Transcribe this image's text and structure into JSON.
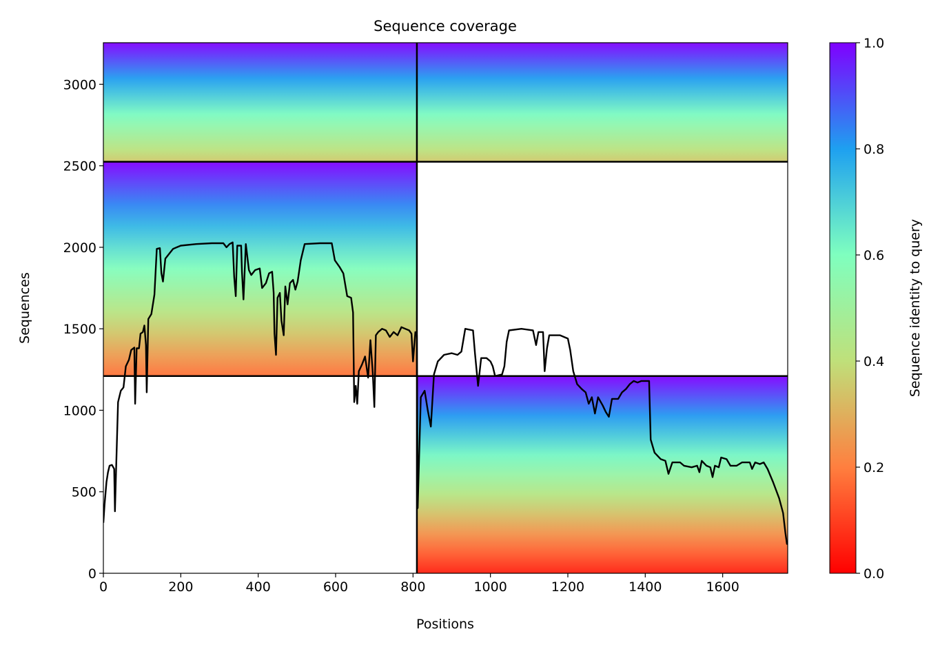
{
  "chart_data": {
    "type": "heatmap",
    "title": "Sequence coverage",
    "xlabel": "Positions",
    "ylabel": "Sequences",
    "xlim": [
      0,
      1768
    ],
    "ylim": [
      0,
      3255
    ],
    "x_ticks": [
      0,
      200,
      400,
      600,
      800,
      1000,
      1200,
      1400,
      1600
    ],
    "y_ticks": [
      0,
      500,
      1000,
      1500,
      2000,
      2500,
      3000
    ],
    "colorbar": {
      "label": "Sequence identity to query",
      "range": [
        0.0,
        1.0
      ],
      "ticks": [
        "0.0",
        "0.2",
        "0.4",
        "0.6",
        "0.8",
        "1.0"
      ],
      "colormap": "rainbow_r",
      "stops": [
        "#ff0000",
        "#ff7f3f",
        "#bfe07a",
        "#7fffbf",
        "#1ea0f0",
        "#7f00ff"
      ]
    },
    "chain_boundaries": {
      "x": [
        810
      ],
      "y": [
        1210,
        2525
      ]
    },
    "blocks": [
      {
        "name": "chain-A-block",
        "x": [
          0,
          810
        ],
        "y": [
          1210,
          2525
        ],
        "identity_top": 1.0,
        "identity_bottom": 0.18
      },
      {
        "name": "chain-AB-block",
        "x": [
          0,
          1768
        ],
        "y": [
          2525,
          3255
        ],
        "identity_top": 1.0,
        "identity_bottom": 0.35
      },
      {
        "name": "chain-B-block",
        "x": [
          810,
          1768
        ],
        "y": [
          0,
          1210
        ],
        "identity_top": 1.0,
        "identity_bottom": 0.05
      }
    ],
    "coverage_line": {
      "name": "coverage",
      "color": "#000000",
      "points": [
        [
          0,
          310
        ],
        [
          3,
          420
        ],
        [
          8,
          560
        ],
        [
          12,
          620
        ],
        [
          16,
          660
        ],
        [
          22,
          665
        ],
        [
          28,
          640
        ],
        [
          30,
          380
        ],
        [
          33,
          640
        ],
        [
          38,
          1050
        ],
        [
          45,
          1120
        ],
        [
          52,
          1140
        ],
        [
          58,
          1270
        ],
        [
          66,
          1310
        ],
        [
          72,
          1370
        ],
        [
          80,
          1385
        ],
        [
          82,
          1040
        ],
        [
          86,
          1380
        ],
        [
          92,
          1380
        ],
        [
          96,
          1470
        ],
        [
          102,
          1480
        ],
        [
          106,
          1520
        ],
        [
          110,
          1400
        ],
        [
          112,
          1110
        ],
        [
          116,
          1560
        ],
        [
          124,
          1590
        ],
        [
          132,
          1710
        ],
        [
          138,
          1990
        ],
        [
          146,
          1995
        ],
        [
          150,
          1840
        ],
        [
          154,
          1790
        ],
        [
          160,
          1930
        ],
        [
          170,
          1960
        ],
        [
          180,
          1990
        ],
        [
          200,
          2010
        ],
        [
          240,
          2020
        ],
        [
          280,
          2025
        ],
        [
          310,
          2025
        ],
        [
          318,
          2000
        ],
        [
          326,
          2020
        ],
        [
          334,
          2030
        ],
        [
          338,
          1820
        ],
        [
          342,
          1700
        ],
        [
          346,
          2010
        ],
        [
          356,
          2010
        ],
        [
          358,
          1850
        ],
        [
          362,
          1680
        ],
        [
          368,
          2020
        ],
        [
          376,
          1860
        ],
        [
          382,
          1830
        ],
        [
          392,
          1860
        ],
        [
          404,
          1870
        ],
        [
          410,
          1750
        ],
        [
          420,
          1780
        ],
        [
          428,
          1840
        ],
        [
          436,
          1850
        ],
        [
          440,
          1720
        ],
        [
          442,
          1470
        ],
        [
          446,
          1340
        ],
        [
          450,
          1690
        ],
        [
          456,
          1720
        ],
        [
          460,
          1550
        ],
        [
          466,
          1460
        ],
        [
          470,
          1760
        ],
        [
          476,
          1650
        ],
        [
          482,
          1780
        ],
        [
          490,
          1800
        ],
        [
          496,
          1740
        ],
        [
          502,
          1790
        ],
        [
          510,
          1920
        ],
        [
          520,
          2020
        ],
        [
          560,
          2025
        ],
        [
          590,
          2025
        ],
        [
          598,
          1920
        ],
        [
          610,
          1880
        ],
        [
          620,
          1840
        ],
        [
          630,
          1700
        ],
        [
          640,
          1690
        ],
        [
          645,
          1600
        ],
        [
          648,
          1050
        ],
        [
          652,
          1150
        ],
        [
          656,
          1040
        ],
        [
          660,
          1240
        ],
        [
          668,
          1280
        ],
        [
          676,
          1330
        ],
        [
          684,
          1200
        ],
        [
          690,
          1430
        ],
        [
          696,
          1230
        ],
        [
          700,
          1020
        ],
        [
          704,
          1460
        ],
        [
          710,
          1480
        ],
        [
          720,
          1500
        ],
        [
          730,
          1490
        ],
        [
          740,
          1450
        ],
        [
          750,
          1480
        ],
        [
          760,
          1460
        ],
        [
          770,
          1510
        ],
        [
          780,
          1500
        ],
        [
          790,
          1490
        ],
        [
          796,
          1470
        ],
        [
          800,
          1300
        ],
        [
          806,
          1480
        ],
        [
          810,
          1460
        ],
        [
          812,
          400
        ],
        [
          820,
          1080
        ],
        [
          830,
          1120
        ],
        [
          838,
          1000
        ],
        [
          846,
          900
        ],
        [
          854,
          1220
        ],
        [
          864,
          1300
        ],
        [
          880,
          1340
        ],
        [
          900,
          1350
        ],
        [
          915,
          1340
        ],
        [
          925,
          1360
        ],
        [
          935,
          1500
        ],
        [
          955,
          1490
        ],
        [
          960,
          1350
        ],
        [
          968,
          1150
        ],
        [
          976,
          1320
        ],
        [
          990,
          1320
        ],
        [
          1000,
          1300
        ],
        [
          1006,
          1270
        ],
        [
          1012,
          1210
        ],
        [
          1030,
          1220
        ],
        [
          1036,
          1270
        ],
        [
          1042,
          1420
        ],
        [
          1048,
          1490
        ],
        [
          1080,
          1500
        ],
        [
          1110,
          1490
        ],
        [
          1118,
          1400
        ],
        [
          1124,
          1480
        ],
        [
          1136,
          1480
        ],
        [
          1140,
          1240
        ],
        [
          1146,
          1380
        ],
        [
          1152,
          1460
        ],
        [
          1180,
          1460
        ],
        [
          1200,
          1440
        ],
        [
          1206,
          1370
        ],
        [
          1214,
          1240
        ],
        [
          1224,
          1160
        ],
        [
          1236,
          1130
        ],
        [
          1246,
          1110
        ],
        [
          1254,
          1040
        ],
        [
          1262,
          1080
        ],
        [
          1270,
          980
        ],
        [
          1278,
          1080
        ],
        [
          1290,
          1030
        ],
        [
          1298,
          990
        ],
        [
          1306,
          960
        ],
        [
          1314,
          1070
        ],
        [
          1330,
          1070
        ],
        [
          1340,
          1110
        ],
        [
          1350,
          1130
        ],
        [
          1360,
          1160
        ],
        [
          1370,
          1180
        ],
        [
          1380,
          1170
        ],
        [
          1390,
          1180
        ],
        [
          1400,
          1180
        ],
        [
          1410,
          1180
        ],
        [
          1414,
          820
        ],
        [
          1424,
          740
        ],
        [
          1440,
          700
        ],
        [
          1452,
          690
        ],
        [
          1460,
          610
        ],
        [
          1470,
          680
        ],
        [
          1490,
          680
        ],
        [
          1500,
          660
        ],
        [
          1520,
          650
        ],
        [
          1534,
          660
        ],
        [
          1540,
          620
        ],
        [
          1546,
          690
        ],
        [
          1558,
          660
        ],
        [
          1568,
          650
        ],
        [
          1574,
          590
        ],
        [
          1580,
          660
        ],
        [
          1590,
          650
        ],
        [
          1596,
          710
        ],
        [
          1610,
          700
        ],
        [
          1620,
          660
        ],
        [
          1636,
          660
        ],
        [
          1650,
          680
        ],
        [
          1670,
          680
        ],
        [
          1676,
          640
        ],
        [
          1684,
          680
        ],
        [
          1696,
          670
        ],
        [
          1706,
          680
        ],
        [
          1716,
          640
        ],
        [
          1730,
          560
        ],
        [
          1746,
          460
        ],
        [
          1756,
          370
        ],
        [
          1762,
          250
        ],
        [
          1766,
          180
        ],
        [
          1768,
          180
        ]
      ]
    }
  }
}
